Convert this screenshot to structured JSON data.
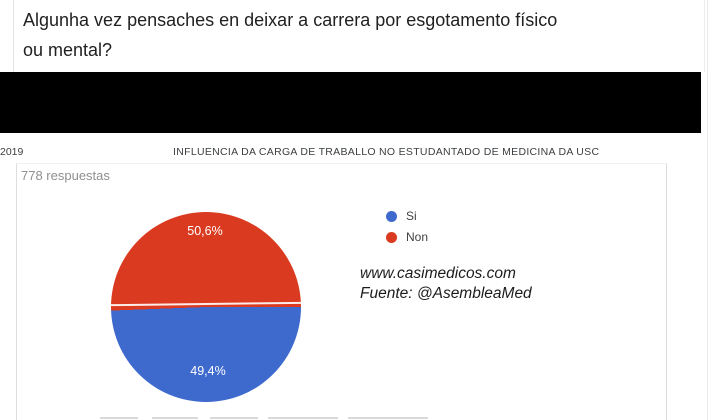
{
  "page": {
    "question": "Algunha vez pensaches en deixar a carrera por esgotamento físico ou mental?",
    "year": "2019",
    "title": "INFLUENCIA DA CARGA DE TRABALLO NO ESTUDANTADO DE MEDICINA DA USC",
    "responses_count": "778 respuestas",
    "watermark_line1": "www.casimedicos.com",
    "watermark_line2": "Fuente: @AsembleaMed"
  },
  "legend": {
    "items": [
      {
        "label": "Si",
        "color": "#3e6ace"
      },
      {
        "label": "Non",
        "color": "#da3b20"
      }
    ]
  },
  "chart_data": {
    "type": "pie",
    "title": "Algunha vez pensaches en deixar a carrera por esgotamento físico ou mental?",
    "subtitle": "778 respuestas",
    "categories": [
      "Si",
      "Non"
    ],
    "values": [
      49.4,
      50.6
    ],
    "labels": [
      "49,4%",
      "50,6%"
    ],
    "colors": [
      "#3e6ace",
      "#da3b20"
    ],
    "label_color": "#ffffff",
    "legend_position": "right",
    "start_angle_deg": 90,
    "direction": "clockwise"
  }
}
